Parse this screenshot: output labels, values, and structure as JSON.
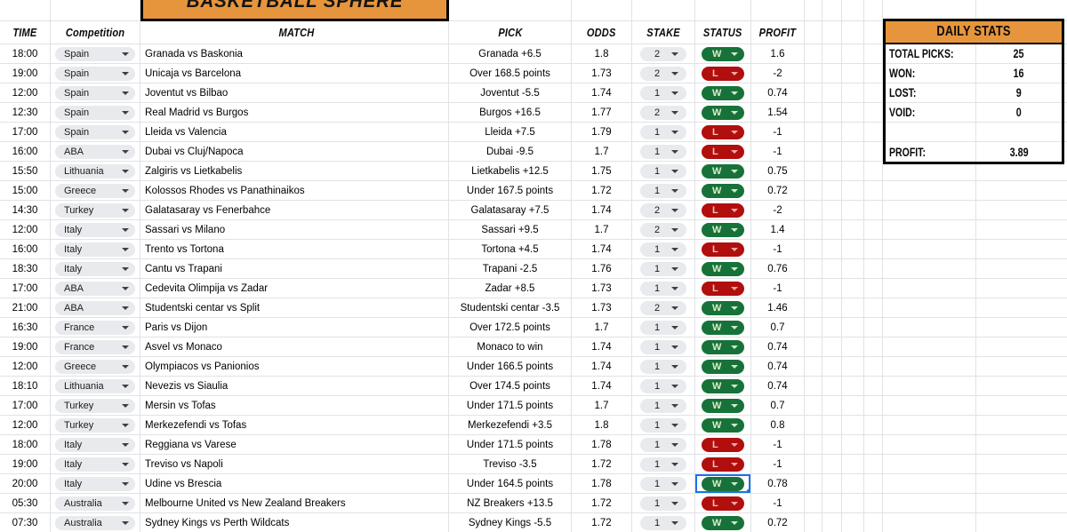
{
  "banner": {
    "title": "BASKETBALL SPHERE"
  },
  "colors": {
    "accent_orange": "#E6953C",
    "win_chip_bg": "#177239",
    "win_chip_text": "#DCEBC8",
    "loss_chip_bg": "#B10E0E",
    "loss_chip_text": "#F6C1BB",
    "gray_chip_bg": "#E8EAED",
    "selection_blue": "#1A73E8",
    "gridline": "#E0E2E4"
  },
  "table": {
    "headers": {
      "time": "TIME",
      "competition": "Competition",
      "match": "MATCH",
      "pick": "PICK",
      "odds": "ODDS",
      "stake": "STAKE",
      "status": "STATUS",
      "profit": "PROFIT"
    },
    "rows": [
      {
        "time": "18:00",
        "competition": "Spain",
        "match": "Granada vs Baskonia",
        "pick": "Granada +6.5",
        "odds": "1.8",
        "stake": "2",
        "status": "W",
        "profit": "1.6"
      },
      {
        "time": "19:00",
        "competition": "Spain",
        "match": "Unicaja vs Barcelona",
        "pick": "Over 168.5 points",
        "odds": "1.73",
        "stake": "2",
        "status": "L",
        "profit": "-2"
      },
      {
        "time": "12:00",
        "competition": "Spain",
        "match": "Joventut vs Bilbao",
        "pick": "Joventut -5.5",
        "odds": "1.74",
        "stake": "1",
        "status": "W",
        "profit": "0.74"
      },
      {
        "time": "12:30",
        "competition": "Spain",
        "match": "Real Madrid vs Burgos",
        "pick": "Burgos +16.5",
        "odds": "1.77",
        "stake": "2",
        "status": "W",
        "profit": "1.54"
      },
      {
        "time": "17:00",
        "competition": "Spain",
        "match": "Lleida vs Valencia",
        "pick": "Lleida +7.5",
        "odds": "1.79",
        "stake": "1",
        "status": "L",
        "profit": "-1"
      },
      {
        "time": "16:00",
        "competition": "ABA",
        "match": "Dubai vs Cluj/Napoca",
        "pick": "Dubai -9.5",
        "odds": "1.7",
        "stake": "1",
        "status": "L",
        "profit": "-1"
      },
      {
        "time": "15:50",
        "competition": "Lithuania",
        "match": "Zalgiris vs Lietkabelis",
        "pick": "Lietkabelis +12.5",
        "odds": "1.75",
        "stake": "1",
        "status": "W",
        "profit": "0.75"
      },
      {
        "time": "15:00",
        "competition": "Greece",
        "match": "Kolossos Rhodes vs Panathinaikos",
        "pick": "Under 167.5 points",
        "odds": "1.72",
        "stake": "1",
        "status": "W",
        "profit": "0.72"
      },
      {
        "time": "14:30",
        "competition": "Turkey",
        "match": "Galatasaray vs Fenerbahce",
        "pick": "Galatasaray +7.5",
        "odds": "1.74",
        "stake": "2",
        "status": "L",
        "profit": "-2"
      },
      {
        "time": "12:00",
        "competition": "Italy",
        "match": "Sassari vs Milano",
        "pick": "Sassari +9.5",
        "odds": "1.7",
        "stake": "2",
        "status": "W",
        "profit": "1.4"
      },
      {
        "time": "16:00",
        "competition": "Italy",
        "match": "Trento vs Tortona",
        "pick": "Tortona +4.5",
        "odds": "1.74",
        "stake": "1",
        "status": "L",
        "profit": "-1"
      },
      {
        "time": "18:30",
        "competition": "Italy",
        "match": "Cantu vs Trapani",
        "pick": "Trapani -2.5",
        "odds": "1.76",
        "stake": "1",
        "status": "W",
        "profit": "0.76"
      },
      {
        "time": "17:00",
        "competition": "ABA",
        "match": "Cedevita Olimpija vs Zadar",
        "pick": "Zadar +8.5",
        "odds": "1.73",
        "stake": "1",
        "status": "L",
        "profit": "-1"
      },
      {
        "time": "21:00",
        "competition": "ABA",
        "match": "Studentski centar vs Split",
        "pick": "Studentski centar -3.5",
        "odds": "1.73",
        "stake": "2",
        "status": "W",
        "profit": "1.46"
      },
      {
        "time": "16:30",
        "competition": "France",
        "match": "Paris vs Dijon",
        "pick": "Over 172.5 points",
        "odds": "1.7",
        "stake": "1",
        "status": "W",
        "profit": "0.7"
      },
      {
        "time": "19:00",
        "competition": "France",
        "match": "Asvel vs Monaco",
        "pick": "Monaco to win",
        "odds": "1.74",
        "stake": "1",
        "status": "W",
        "profit": "0.74"
      },
      {
        "time": "12:00",
        "competition": "Greece",
        "match": "Olympiacos vs Panionios",
        "pick": "Under 166.5 points",
        "odds": "1.74",
        "stake": "1",
        "status": "W",
        "profit": "0.74"
      },
      {
        "time": "18:10",
        "competition": "Lithuania",
        "match": "Nevezis vs Siaulia",
        "pick": "Over 174.5 points",
        "odds": "1.74",
        "stake": "1",
        "status": "W",
        "profit": "0.74"
      },
      {
        "time": "17:00",
        "competition": "Turkey",
        "match": "Mersin vs Tofas",
        "pick": "Under 171.5 points",
        "odds": "1.7",
        "stake": "1",
        "status": "W",
        "profit": "0.7"
      },
      {
        "time": "12:00",
        "competition": "Turkey",
        "match": "Merkezefendi vs Tofas",
        "pick": "Merkezefendi +3.5",
        "odds": "1.8",
        "stake": "1",
        "status": "W",
        "profit": "0.8"
      },
      {
        "time": "18:00",
        "competition": "Italy",
        "match": "Reggiana vs Varese",
        "pick": "Under 171.5 points",
        "odds": "1.78",
        "stake": "1",
        "status": "L",
        "profit": "-1"
      },
      {
        "time": "19:00",
        "competition": "Italy",
        "match": "Treviso vs Napoli",
        "pick": "Treviso -3.5",
        "odds": "1.72",
        "stake": "1",
        "status": "L",
        "profit": "-1"
      },
      {
        "time": "20:00",
        "competition": "Italy",
        "match": "Udine vs Brescia",
        "pick": "Under 164.5 points",
        "odds": "1.78",
        "stake": "1",
        "status": "W",
        "profit": "0.78",
        "selected": true
      },
      {
        "time": "05:30",
        "competition": "Australia",
        "match": "Melbourne United vs New Zealand Breakers",
        "pick": "NZ Breakers +13.5",
        "odds": "1.72",
        "stake": "1",
        "status": "L",
        "profit": "-1"
      },
      {
        "time": "07:30",
        "competition": "Australia",
        "match": "Sydney Kings vs Perth Wildcats",
        "pick": "Sydney Kings -5.5",
        "odds": "1.72",
        "stake": "1",
        "status": "W",
        "profit": "0.72"
      }
    ]
  },
  "daily_stats": {
    "title": "DAILY STATS",
    "items": [
      {
        "label": "TOTAL PICKS:",
        "value": "25"
      },
      {
        "label": "WON:",
        "value": "16"
      },
      {
        "label": "LOST:",
        "value": "9"
      },
      {
        "label": "VOID:",
        "value": "0"
      },
      {
        "label": "",
        "value": ""
      },
      {
        "label": "PROFIT:",
        "value": "3.89"
      }
    ]
  },
  "selection": {
    "row": 23,
    "column": "status"
  }
}
